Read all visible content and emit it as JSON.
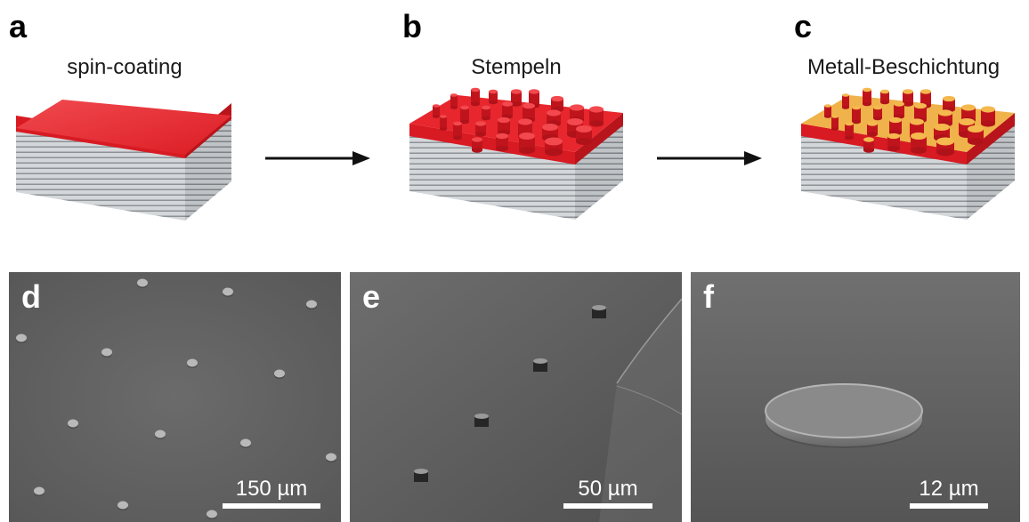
{
  "panels": {
    "a": {
      "letter": "a",
      "title": "spin-coating"
    },
    "b": {
      "letter": "b",
      "title": "Stempeln"
    },
    "c": {
      "letter": "c",
      "title": "Metall-Beschichtung"
    },
    "d": {
      "letter": "d",
      "scale_label": "150 µm"
    },
    "e": {
      "letter": "e",
      "scale_label": "50 µm"
    },
    "f": {
      "letter": "f",
      "scale_label": "12 µm"
    }
  },
  "colors": {
    "polymer_red": "#e8232a",
    "metal_gold": "#f0b24a",
    "substrate_gray": "#cfd3d6",
    "sem_gray": "#5a5a5a",
    "arrow": "#111111"
  }
}
